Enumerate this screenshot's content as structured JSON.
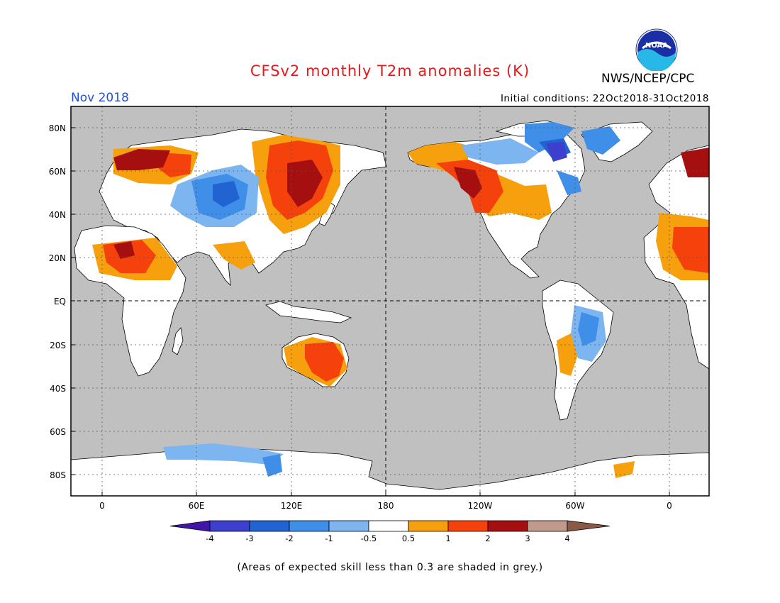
{
  "title": "CFSv2 monthly T2m anomalies (K)",
  "forecast_month": "Nov 2018",
  "initial_conditions": "Initial conditions: 22Oct2018-31Oct2018",
  "organization": "NWS/NCEP/CPC",
  "logo_text": "NOAA",
  "footnote": "(Areas of expected skill less than 0.3 are shaded in grey.)",
  "latitude_labels": [
    "80N",
    "60N",
    "40N",
    "20N",
    "EQ",
    "20S",
    "40S",
    "60S",
    "80S"
  ],
  "longitude_labels": [
    "0",
    "60E",
    "120E",
    "180",
    "120W",
    "60W",
    "0"
  ],
  "colorbar": {
    "labels": [
      "-4",
      "-3",
      "-2",
      "-1",
      "-0.5",
      "0.5",
      "1",
      "2",
      "3",
      "4"
    ],
    "colors": [
      "#3f16a8",
      "#3d3fcf",
      "#2163d1",
      "#3f8ee8",
      "#7db5f0",
      "#ffffff",
      "#f7a00e",
      "#f5420c",
      "#a50f0f",
      "#c09a8a",
      "#8a5a46"
    ],
    "units": "K"
  },
  "colors": {
    "ocean_grey": "#c0c0c0",
    "land_white": "#ffffff",
    "title_red": "#e31a1c",
    "month_blue": "#1f4fe0"
  }
}
